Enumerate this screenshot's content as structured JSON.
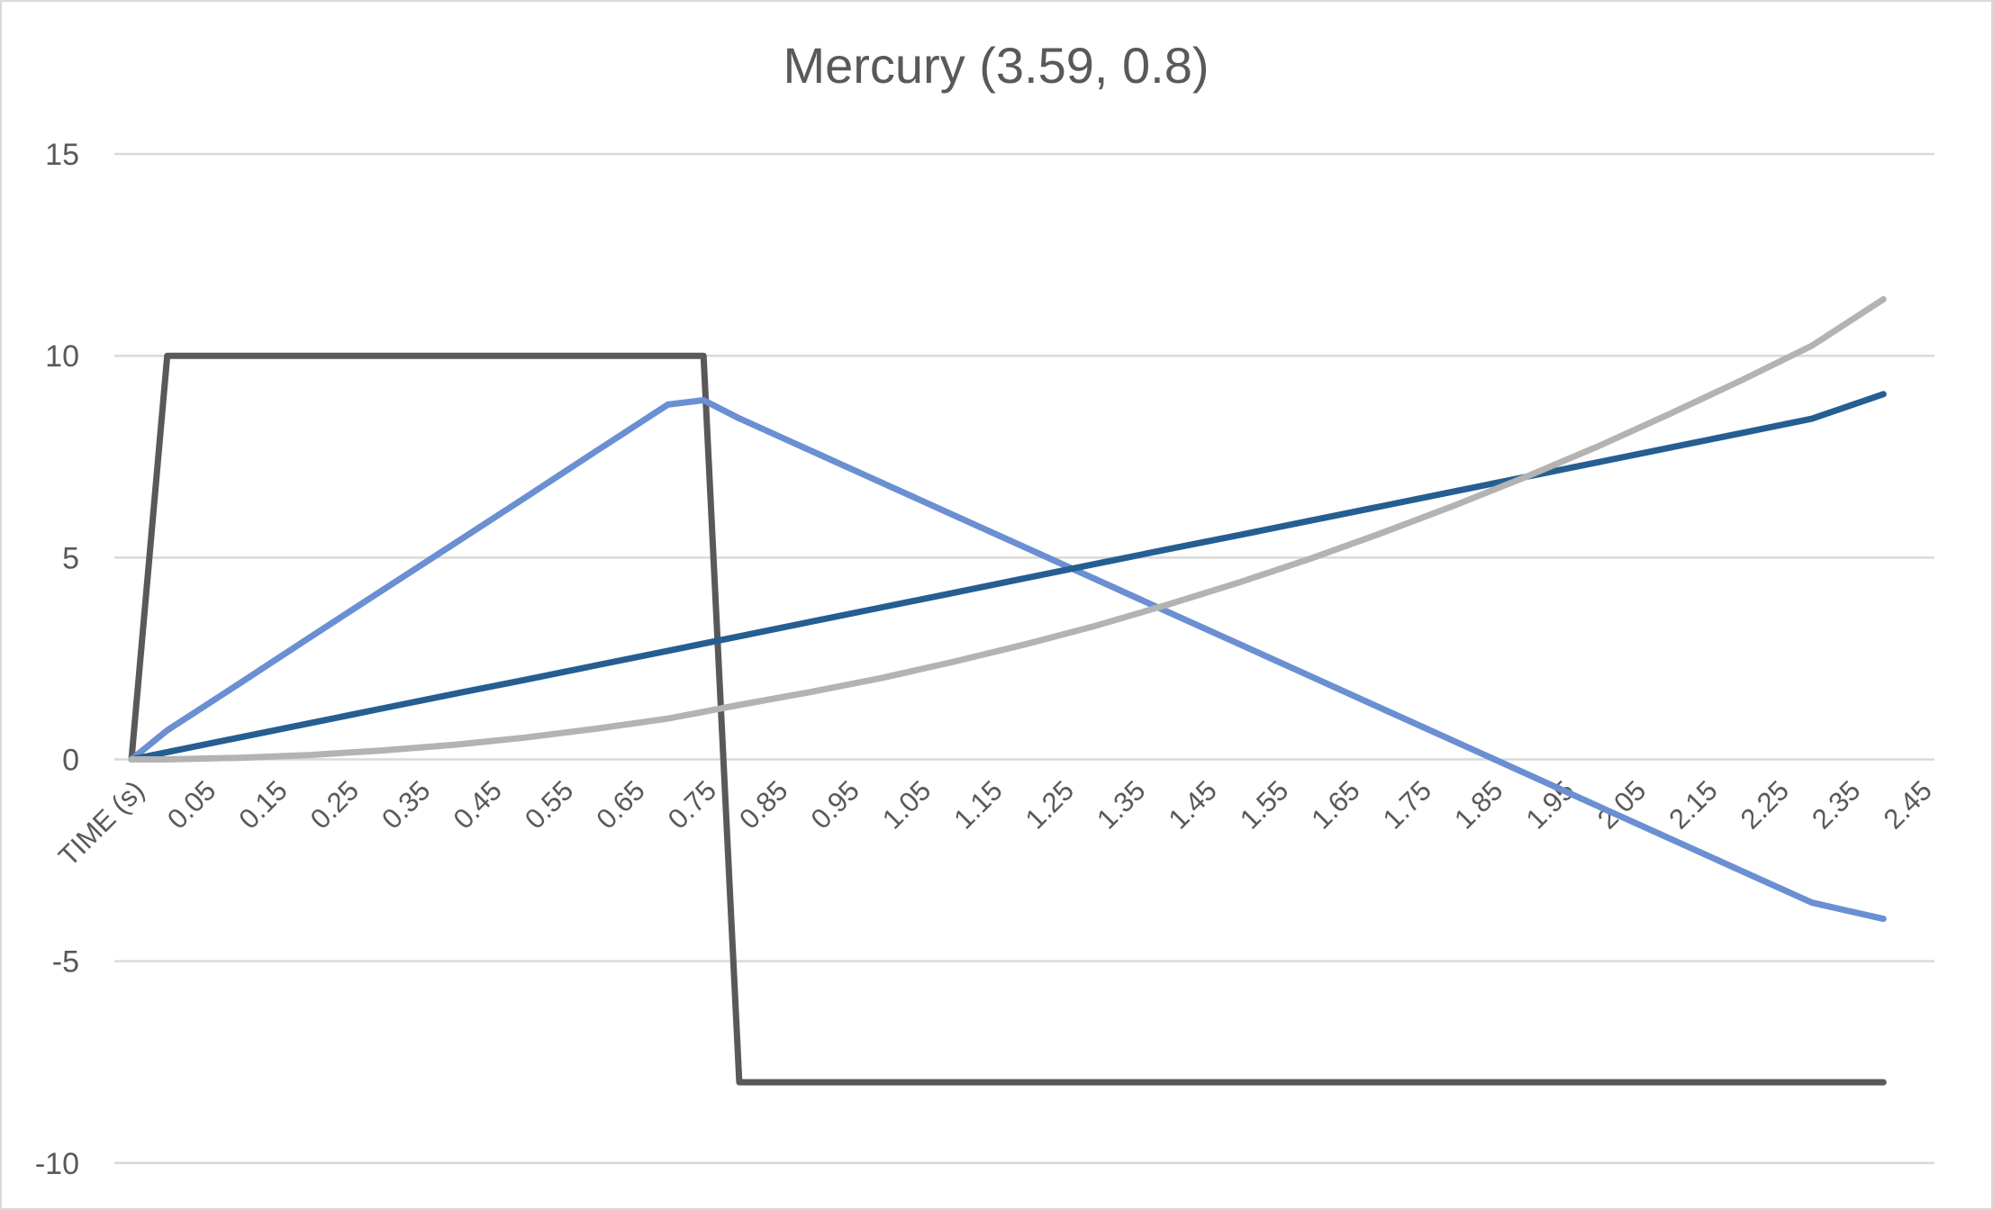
{
  "chart_data": {
    "type": "line",
    "title": "Mercury (3.59, 0.8)",
    "xlabel": "",
    "ylabel": "",
    "x_category_labels": [
      "TIME (s)",
      "0.05",
      "0.15",
      "0.25",
      "0.35",
      "0.45",
      "0.55",
      "0.65",
      "0.75",
      "0.85",
      "0.95",
      "1.05",
      "1.15",
      "1.25",
      "1.35",
      "1.45",
      "1.55",
      "1.65",
      "1.75",
      "1.85",
      "1.95",
      "2.05",
      "2.15",
      "2.25",
      "2.35",
      "2.45"
    ],
    "x": [
      0,
      0.05,
      0.15,
      0.25,
      0.35,
      0.45,
      0.55,
      0.65,
      0.75,
      0.85,
      0.95,
      1.05,
      1.15,
      1.25,
      1.35,
      1.45,
      1.55,
      1.65,
      1.75,
      1.85,
      1.95,
      2.05,
      2.15,
      2.25,
      2.35,
      2.45
    ],
    "ylim": [
      -10,
      15
    ],
    "yticks": [
      15,
      10,
      5,
      0,
      -5,
      -10
    ],
    "grid": true,
    "legend": "none",
    "series": [
      {
        "color": "#595959",
        "points": [
          [
            0,
            0
          ],
          [
            0.05,
            10
          ],
          [
            0.8,
            10
          ],
          [
            0.85,
            -8
          ],
          [
            2.45,
            -8
          ]
        ]
      },
      {
        "color": "#6a8fd2",
        "points": [
          [
            0,
            0
          ],
          [
            0.05,
            0.72
          ],
          [
            0.15,
            1.87
          ],
          [
            0.25,
            3.03
          ],
          [
            0.35,
            4.18
          ],
          [
            0.45,
            5.33
          ],
          [
            0.55,
            6.48
          ],
          [
            0.65,
            7.64
          ],
          [
            0.75,
            8.79
          ],
          [
            0.8,
            8.9
          ],
          [
            0.85,
            8.45
          ],
          [
            0.95,
            7.65
          ],
          [
            1.05,
            6.85
          ],
          [
            1.15,
            6.05
          ],
          [
            1.25,
            5.25
          ],
          [
            1.35,
            4.45
          ],
          [
            1.45,
            3.65
          ],
          [
            1.55,
            2.85
          ],
          [
            1.65,
            2.05
          ],
          [
            1.75,
            1.25
          ],
          [
            1.85,
            0.45
          ],
          [
            1.95,
            -0.35
          ],
          [
            2.05,
            -1.15
          ],
          [
            2.15,
            -1.95
          ],
          [
            2.25,
            -2.75
          ],
          [
            2.35,
            -3.55
          ],
          [
            2.45,
            -3.95
          ]
        ]
      },
      {
        "color": "#255e91",
        "points": [
          [
            0,
            0
          ],
          [
            0.05,
            0.18
          ],
          [
            0.15,
            0.54
          ],
          [
            0.25,
            0.9
          ],
          [
            0.35,
            1.26
          ],
          [
            0.45,
            1.62
          ],
          [
            0.55,
            1.97
          ],
          [
            0.65,
            2.33
          ],
          [
            0.75,
            2.69
          ],
          [
            0.85,
            3.05
          ],
          [
            0.95,
            3.41
          ],
          [
            1.05,
            3.77
          ],
          [
            1.15,
            4.13
          ],
          [
            1.25,
            4.49
          ],
          [
            1.35,
            4.85
          ],
          [
            1.45,
            5.21
          ],
          [
            1.55,
            5.56
          ],
          [
            1.65,
            5.92
          ],
          [
            1.75,
            6.28
          ],
          [
            1.85,
            6.64
          ],
          [
            1.95,
            7.0
          ],
          [
            2.05,
            7.36
          ],
          [
            2.15,
            7.72
          ],
          [
            2.25,
            8.08
          ],
          [
            2.35,
            8.44
          ],
          [
            2.45,
            9.05
          ]
        ]
      },
      {
        "color": "#b3b3b3",
        "points": [
          [
            0,
            0
          ],
          [
            0.05,
            0.0
          ],
          [
            0.15,
            0.04
          ],
          [
            0.25,
            0.11
          ],
          [
            0.35,
            0.22
          ],
          [
            0.45,
            0.36
          ],
          [
            0.55,
            0.54
          ],
          [
            0.65,
            0.76
          ],
          [
            0.75,
            1.01
          ],
          [
            0.85,
            1.35
          ],
          [
            0.95,
            1.67
          ],
          [
            1.05,
            2.02
          ],
          [
            1.15,
            2.42
          ],
          [
            1.25,
            2.85
          ],
          [
            1.35,
            3.32
          ],
          [
            1.45,
            3.84
          ],
          [
            1.55,
            4.39
          ],
          [
            1.65,
            4.98
          ],
          [
            1.75,
            5.62
          ],
          [
            1.85,
            6.29
          ],
          [
            1.95,
            7.0
          ],
          [
            2.05,
            7.75
          ],
          [
            2.15,
            8.55
          ],
          [
            2.25,
            9.38
          ],
          [
            2.35,
            10.25
          ],
          [
            2.45,
            11.4
          ]
        ]
      }
    ]
  }
}
